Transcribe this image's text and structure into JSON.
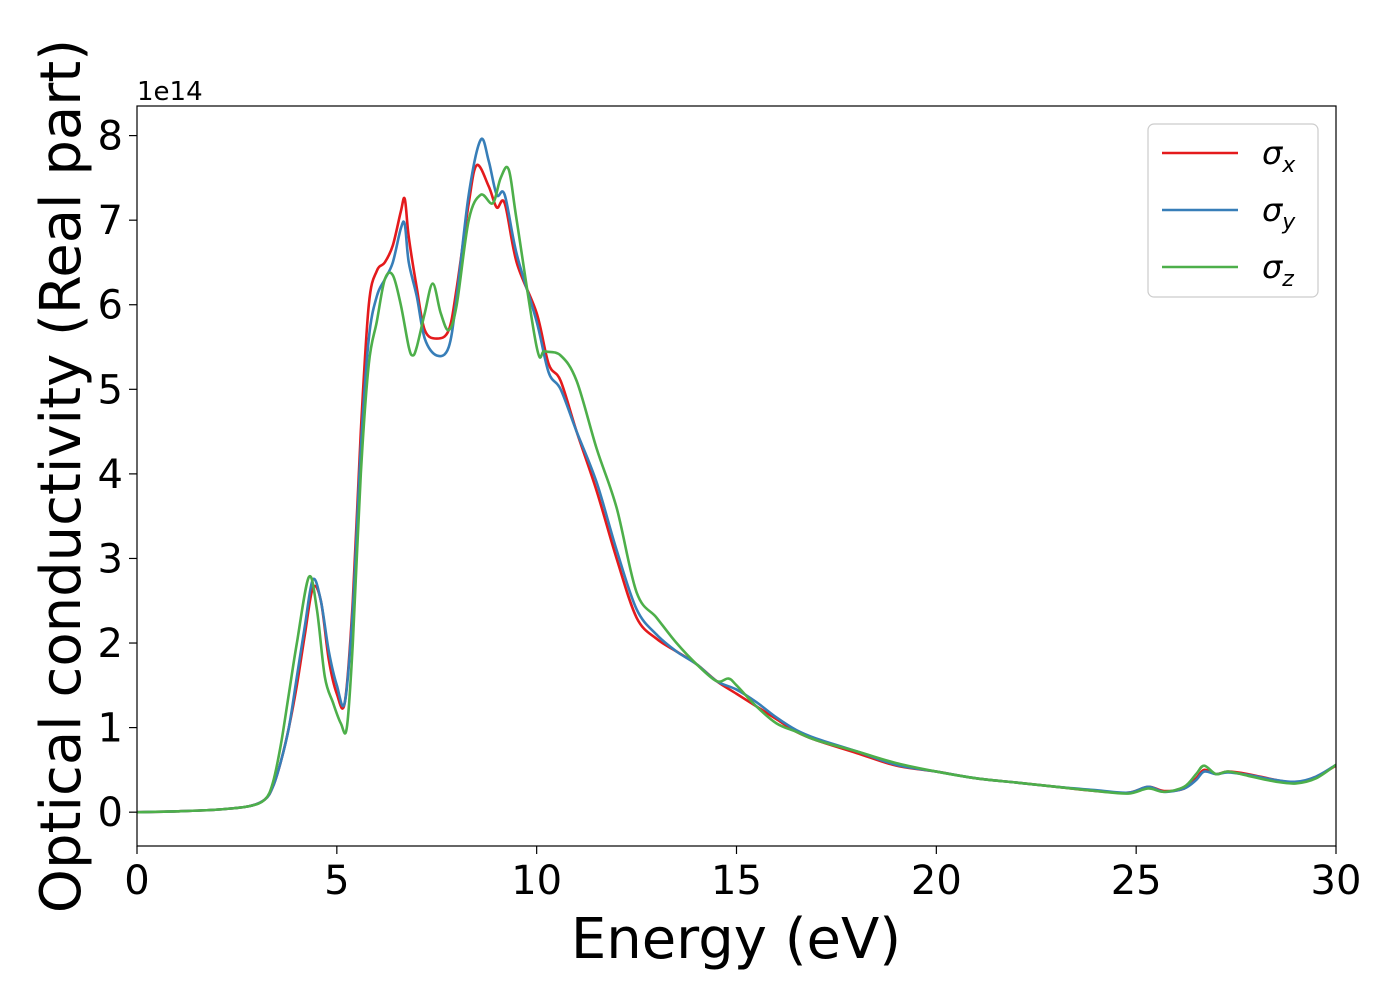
{
  "chart_data": {
    "type": "line",
    "xlabel": "Energy (eV)",
    "ylabel": "Optical conductivity (Real part)",
    "y_offset_label": "1e14",
    "xlim": [
      0,
      30
    ],
    "ylim": [
      -0.4,
      8.35
    ],
    "xticks": [
      "0",
      "5",
      "10",
      "15",
      "20",
      "25",
      "30"
    ],
    "yticks": [
      "0",
      "1",
      "2",
      "3",
      "4",
      "5",
      "6",
      "7",
      "8"
    ],
    "grid": false,
    "legend_position": "top-right",
    "series": [
      {
        "name": "σx",
        "symbol": "σ",
        "subscript": "x",
        "color": "#e41a1c",
        "x": [
          0,
          1,
          2,
          2.8,
          3.2,
          3.4,
          3.6,
          3.8,
          4.0,
          4.2,
          4.4,
          4.6,
          4.8,
          5.0,
          5.2,
          5.4,
          5.6,
          5.8,
          6.0,
          6.2,
          6.4,
          6.6,
          6.7,
          6.8,
          7.0,
          7.2,
          7.5,
          7.8,
          8.0,
          8.3,
          8.5,
          8.8,
          9.0,
          9.2,
          9.5,
          10.0,
          10.3,
          10.6,
          11.0,
          11.5,
          12.0,
          12.5,
          13.0,
          13.5,
          14.0,
          14.5,
          15.0,
          15.5,
          16.0,
          16.5,
          17.0,
          18.0,
          19.0,
          20.0,
          21.0,
          22.0,
          23.0,
          24.0,
          24.8,
          25.3,
          25.7,
          26.2,
          26.5,
          26.7,
          27.0,
          27.3,
          27.8,
          28.5,
          29.0,
          29.5,
          30.0
        ],
        "y": [
          0,
          0.01,
          0.03,
          0.07,
          0.15,
          0.3,
          0.6,
          1.0,
          1.5,
          2.1,
          2.65,
          2.5,
          1.8,
          1.4,
          1.3,
          2.5,
          4.5,
          6.0,
          6.4,
          6.5,
          6.7,
          7.1,
          7.25,
          6.8,
          6.2,
          5.7,
          5.6,
          5.7,
          6.2,
          7.2,
          7.65,
          7.4,
          7.15,
          7.2,
          6.5,
          5.9,
          5.3,
          5.1,
          4.5,
          3.8,
          3.0,
          2.3,
          2.05,
          1.9,
          1.75,
          1.55,
          1.4,
          1.25,
          1.1,
          0.95,
          0.85,
          0.7,
          0.55,
          0.48,
          0.4,
          0.35,
          0.3,
          0.25,
          0.23,
          0.3,
          0.25,
          0.28,
          0.4,
          0.5,
          0.45,
          0.48,
          0.45,
          0.38,
          0.35,
          0.42,
          0.55
        ]
      },
      {
        "name": "σy",
        "symbol": "σ",
        "subscript": "y",
        "color": "#377eb8",
        "x": [
          0,
          1,
          2,
          2.8,
          3.2,
          3.4,
          3.6,
          3.8,
          4.0,
          4.2,
          4.4,
          4.6,
          4.8,
          5.0,
          5.2,
          5.4,
          5.6,
          5.8,
          6.0,
          6.2,
          6.4,
          6.6,
          6.7,
          6.8,
          7.0,
          7.2,
          7.5,
          7.8,
          8.0,
          8.3,
          8.6,
          8.8,
          9.0,
          9.2,
          9.5,
          10.0,
          10.3,
          10.6,
          11.0,
          11.5,
          12.0,
          12.5,
          13.0,
          13.5,
          14.0,
          14.5,
          15.0,
          15.5,
          16.0,
          16.5,
          17.0,
          18.0,
          19.0,
          20.0,
          21.0,
          22.0,
          23.0,
          24.0,
          24.8,
          25.3,
          25.7,
          26.2,
          26.5,
          26.7,
          27.0,
          27.3,
          27.8,
          28.5,
          29.0,
          29.5,
          30.0
        ],
        "y": [
          0,
          0.01,
          0.03,
          0.07,
          0.15,
          0.3,
          0.6,
          1.0,
          1.6,
          2.2,
          2.75,
          2.5,
          1.9,
          1.5,
          1.3,
          2.4,
          4.3,
          5.6,
          6.1,
          6.3,
          6.5,
          6.9,
          6.95,
          6.5,
          6.1,
          5.6,
          5.4,
          5.5,
          6.1,
          7.3,
          7.95,
          7.7,
          7.3,
          7.3,
          6.6,
          5.8,
          5.2,
          5.0,
          4.5,
          3.9,
          3.1,
          2.4,
          2.1,
          1.9,
          1.75,
          1.55,
          1.45,
          1.3,
          1.12,
          0.97,
          0.87,
          0.72,
          0.56,
          0.48,
          0.4,
          0.35,
          0.3,
          0.26,
          0.23,
          0.3,
          0.24,
          0.28,
          0.38,
          0.48,
          0.45,
          0.47,
          0.44,
          0.38,
          0.36,
          0.42,
          0.56
        ]
      },
      {
        "name": "σz",
        "symbol": "σ",
        "subscript": "z",
        "color": "#4daf4a",
        "x": [
          0,
          1,
          2,
          2.8,
          3.2,
          3.4,
          3.6,
          3.8,
          4.0,
          4.3,
          4.5,
          4.7,
          4.9,
          5.1,
          5.25,
          5.4,
          5.6,
          5.8,
          6.0,
          6.2,
          6.4,
          6.6,
          6.8,
          6.9,
          7.0,
          7.2,
          7.4,
          7.6,
          7.8,
          8.0,
          8.3,
          8.6,
          8.9,
          9.1,
          9.3,
          9.5,
          10.0,
          10.2,
          10.6,
          11.0,
          11.5,
          12.0,
          12.5,
          13.0,
          13.5,
          14.0,
          14.5,
          14.8,
          15.0,
          15.5,
          16.0,
          16.5,
          17.0,
          18.0,
          19.0,
          20.0,
          21.0,
          22.0,
          23.0,
          24.0,
          24.8,
          25.3,
          25.7,
          26.2,
          26.5,
          26.7,
          27.0,
          27.3,
          27.8,
          28.5,
          29.0,
          29.5,
          30.0
        ],
        "y": [
          0,
          0.01,
          0.03,
          0.07,
          0.15,
          0.35,
          0.8,
          1.4,
          2.0,
          2.78,
          2.4,
          1.6,
          1.3,
          1.05,
          1.0,
          2.0,
          4.0,
          5.3,
          5.8,
          6.3,
          6.35,
          6.0,
          5.5,
          5.4,
          5.5,
          5.9,
          6.25,
          5.9,
          5.7,
          6.0,
          7.0,
          7.3,
          7.2,
          7.5,
          7.6,
          7.0,
          5.5,
          5.45,
          5.4,
          5.1,
          4.3,
          3.6,
          2.6,
          2.3,
          2.0,
          1.75,
          1.55,
          1.58,
          1.5,
          1.25,
          1.05,
          0.95,
          0.85,
          0.72,
          0.58,
          0.48,
          0.4,
          0.35,
          0.3,
          0.25,
          0.22,
          0.28,
          0.24,
          0.3,
          0.45,
          0.55,
          0.45,
          0.48,
          0.43,
          0.36,
          0.34,
          0.4,
          0.56
        ]
      }
    ]
  }
}
